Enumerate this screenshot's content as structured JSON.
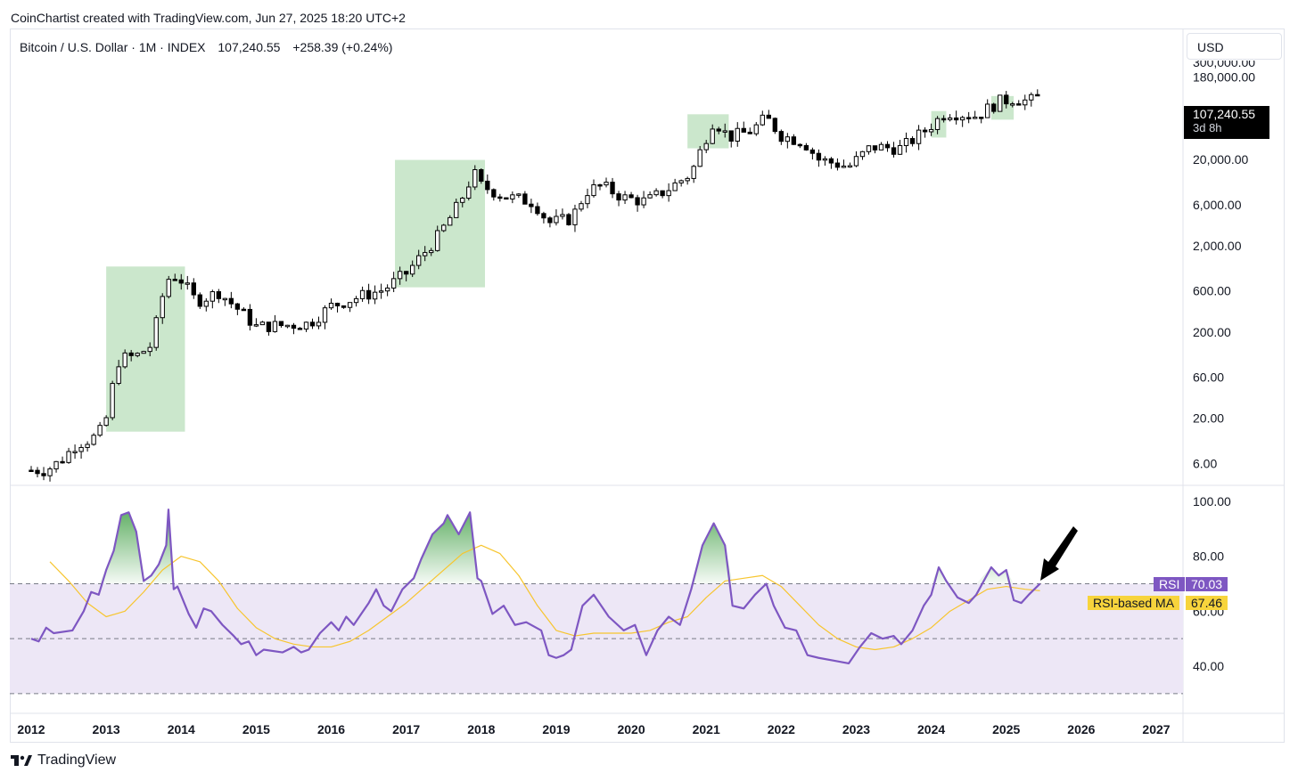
{
  "header": {
    "attribution": "CoinChartist created with TradingView.com, Jun 27, 2025 18:20 UTC+2",
    "symbol": "Bitcoin / U.S. Dollar · 1M · INDEX",
    "last_price": "107,240.55",
    "change": "+258.39 (+0.24%)",
    "currency": "USD"
  },
  "price_tag": {
    "price": "107,240.55",
    "countdown": "3d 8h"
  },
  "rsi_labels": {
    "rsi_name": "RSI",
    "rsi_value": "70.03",
    "ma_name": "RSI-based MA",
    "ma_value": "67.46"
  },
  "footer": {
    "brand": "TradingView",
    "logo_icon": "tradingview-logo-icon",
    "annotation_icon": "arrow-annotation-icon"
  },
  "colors": {
    "rsi_line": "#7e57c2",
    "rsi_ma": "#f7c52e",
    "rsi_band": "#ede7f6",
    "highlight": "#c8e6c9",
    "candle_up": "#ffffff",
    "candle_down": "#000000"
  },
  "chart_data": [
    {
      "type": "candlestick",
      "title": "",
      "scale": "log",
      "y_ticks": [
        "180,000.00",
        "20,000.00",
        "6,000.00",
        "2,000.00",
        "600.00",
        "200.00",
        "60.00",
        "20.00",
        "6.00"
      ],
      "y_tick_values": [
        180000,
        20000,
        6000,
        2000,
        600,
        200,
        60,
        20,
        6
      ],
      "partial_top_tick": "300,000.00",
      "x_ticks": [
        "2012",
        "2013",
        "2014",
        "2015",
        "2016",
        "2017",
        "2018",
        "2019",
        "2020",
        "2021",
        "2022",
        "2023",
        "2024",
        "2025",
        "2026",
        "2027"
      ],
      "xlim": [
        2012,
        2027.3
      ],
      "ylim_log": [
        3.5,
        340000
      ],
      "close_path": [
        [
          2012.0,
          5.0
        ],
        [
          2012.2,
          5.0
        ],
        [
          2012.4,
          6.5
        ],
        [
          2012.6,
          10.0
        ],
        [
          2012.8,
          11.5
        ],
        [
          2012.9,
          13.0
        ],
        [
          2013.0,
          20.0
        ],
        [
          2013.15,
          90.0
        ],
        [
          2013.25,
          100.0
        ],
        [
          2013.4,
          105.0
        ],
        [
          2013.6,
          140.0
        ],
        [
          2013.8,
          800.0
        ],
        [
          2013.9,
          900.0
        ],
        [
          2014.0,
          800.0
        ],
        [
          2014.2,
          450.0
        ],
        [
          2014.5,
          580.0
        ],
        [
          2014.8,
          340.0
        ],
        [
          2015.0,
          230.0
        ],
        [
          2015.4,
          240.0
        ],
        [
          2015.7,
          250.0
        ],
        [
          2016.0,
          400.0
        ],
        [
          2016.4,
          520.0
        ],
        [
          2016.7,
          620.0
        ],
        [
          2017.0,
          960.0
        ],
        [
          2017.4,
          2400.0
        ],
        [
          2017.7,
          6000.0
        ],
        [
          2017.9,
          14000.0
        ],
        [
          2018.0,
          10000.0
        ],
        [
          2018.3,
          7500.0
        ],
        [
          2018.7,
          6400.0
        ],
        [
          2018.9,
          3700.0
        ],
        [
          2019.2,
          4100.0
        ],
        [
          2019.4,
          8500.0
        ],
        [
          2019.6,
          10000.0
        ],
        [
          2019.9,
          7200.0
        ],
        [
          2020.2,
          6500.0
        ],
        [
          2020.5,
          9200.0
        ],
        [
          2020.8,
          13800.0
        ],
        [
          2020.95,
          29000.0
        ],
        [
          2021.1,
          58000.0
        ],
        [
          2021.3,
          36000.0
        ],
        [
          2021.6,
          43000.0
        ],
        [
          2021.8,
          61000.0
        ],
        [
          2022.0,
          38000.0
        ],
        [
          2022.3,
          32000.0
        ],
        [
          2022.5,
          20000.0
        ],
        [
          2022.9,
          16500.0
        ],
        [
          2023.2,
          28000.0
        ],
        [
          2023.6,
          27000.0
        ],
        [
          2023.9,
          42000.0
        ],
        [
          2024.2,
          71000.0
        ],
        [
          2024.6,
          64000.0
        ],
        [
          2024.9,
          93000.0
        ],
        [
          2025.1,
          102000.0
        ],
        [
          2025.3,
          94000.0
        ],
        [
          2025.45,
          107240.55
        ]
      ],
      "highlight_boxes": [
        {
          "x0": 2013.0,
          "x1": 2014.05,
          "y_low": 14,
          "y_high": 1150
        },
        {
          "x0": 2016.85,
          "x1": 2018.05,
          "y_low": 660,
          "y_high": 19800
        },
        {
          "x0": 2020.75,
          "x1": 2021.3,
          "y_low": 27000,
          "y_high": 67000
        },
        {
          "x0": 2024.0,
          "x1": 2024.2,
          "y_low": 36000,
          "y_high": 73000
        },
        {
          "x0": 2024.8,
          "x1": 2025.1,
          "y_low": 58000,
          "y_high": 109000
        }
      ]
    },
    {
      "type": "line",
      "title": "",
      "y_ticks": [
        "100.00",
        "80.00",
        "60.00",
        "40.00"
      ],
      "ylim": [
        20,
        106
      ],
      "band": [
        30,
        70
      ],
      "midline": 50,
      "series": [
        {
          "name": "RSI",
          "values_path": [
            [
              2012.0,
              50
            ],
            [
              2012.1,
              49
            ],
            [
              2012.2,
              54
            ],
            [
              2012.3,
              52
            ],
            [
              2012.55,
              53
            ],
            [
              2012.7,
              60
            ],
            [
              2012.8,
              67
            ],
            [
              2012.9,
              66
            ],
            [
              2013.0,
              75
            ],
            [
              2013.1,
              82
            ],
            [
              2013.2,
              95
            ],
            [
              2013.3,
              96
            ],
            [
              2013.4,
              89
            ],
            [
              2013.5,
              71
            ],
            [
              2013.6,
              73
            ],
            [
              2013.7,
              77
            ],
            [
              2013.8,
              84
            ],
            [
              2013.83,
              97
            ],
            [
              2013.9,
              68
            ],
            [
              2013.95,
              69
            ],
            [
              2014.1,
              59
            ],
            [
              2014.2,
              54
            ],
            [
              2014.3,
              61
            ],
            [
              2014.4,
              60
            ],
            [
              2014.55,
              55
            ],
            [
              2014.7,
              51
            ],
            [
              2014.8,
              48
            ],
            [
              2014.9,
              49
            ],
            [
              2015.0,
              44
            ],
            [
              2015.1,
              46
            ],
            [
              2015.35,
              45
            ],
            [
              2015.5,
              47
            ],
            [
              2015.6,
              45
            ],
            [
              2015.7,
              46
            ],
            [
              2015.85,
              52
            ],
            [
              2016.0,
              56
            ],
            [
              2016.1,
              53
            ],
            [
              2016.2,
              58
            ],
            [
              2016.3,
              55
            ],
            [
              2016.4,
              59
            ],
            [
              2016.5,
              63
            ],
            [
              2016.6,
              68
            ],
            [
              2016.7,
              62
            ],
            [
              2016.8,
              60
            ],
            [
              2016.95,
              68
            ],
            [
              2017.1,
              72
            ],
            [
              2017.2,
              79
            ],
            [
              2017.35,
              88
            ],
            [
              2017.5,
              92
            ],
            [
              2017.55,
              95
            ],
            [
              2017.7,
              88
            ],
            [
              2017.85,
              96
            ],
            [
              2017.95,
              72
            ],
            [
              2018.0,
              71
            ],
            [
              2018.15,
              59
            ],
            [
              2018.3,
              62
            ],
            [
              2018.45,
              55
            ],
            [
              2018.6,
              56
            ],
            [
              2018.8,
              53
            ],
            [
              2018.9,
              44
            ],
            [
              2019.0,
              43
            ],
            [
              2019.1,
              44
            ],
            [
              2019.2,
              46
            ],
            [
              2019.35,
              62
            ],
            [
              2019.5,
              66
            ],
            [
              2019.7,
              58
            ],
            [
              2019.9,
              53
            ],
            [
              2020.05,
              55
            ],
            [
              2020.2,
              44
            ],
            [
              2020.35,
              53
            ],
            [
              2020.5,
              58
            ],
            [
              2020.65,
              55
            ],
            [
              2020.8,
              68
            ],
            [
              2020.95,
              84
            ],
            [
              2021.1,
              92
            ],
            [
              2021.25,
              84
            ],
            [
              2021.35,
              62
            ],
            [
              2021.5,
              61
            ],
            [
              2021.65,
              66
            ],
            [
              2021.8,
              70
            ],
            [
              2021.9,
              62
            ],
            [
              2022.05,
              54
            ],
            [
              2022.2,
              53
            ],
            [
              2022.35,
              44
            ],
            [
              2022.5,
              43
            ],
            [
              2022.7,
              42
            ],
            [
              2022.9,
              41
            ],
            [
              2023.05,
              47
            ],
            [
              2023.2,
              52
            ],
            [
              2023.35,
              50
            ],
            [
              2023.5,
              51
            ],
            [
              2023.6,
              48
            ],
            [
              2023.75,
              53
            ],
            [
              2023.9,
              62
            ],
            [
              2024.0,
              66
            ],
            [
              2024.1,
              76
            ],
            [
              2024.2,
              71
            ],
            [
              2024.35,
              65
            ],
            [
              2024.5,
              63
            ],
            [
              2024.6,
              66
            ],
            [
              2024.8,
              76
            ],
            [
              2024.9,
              73
            ],
            [
              2025.0,
              75
            ],
            [
              2025.1,
              64
            ],
            [
              2025.2,
              63
            ],
            [
              2025.3,
              66
            ],
            [
              2025.45,
              70.03
            ]
          ]
        },
        {
          "name": "RSI-based MA",
          "values_path": [
            [
              2012.25,
              78
            ],
            [
              2012.5,
              71
            ],
            [
              2012.75,
              63
            ],
            [
              2013.0,
              58
            ],
            [
              2013.25,
              60
            ],
            [
              2013.5,
              67
            ],
            [
              2013.75,
              75
            ],
            [
              2014.0,
              80
            ],
            [
              2014.25,
              78
            ],
            [
              2014.5,
              71
            ],
            [
              2014.75,
              61
            ],
            [
              2015.0,
              54
            ],
            [
              2015.25,
              50
            ],
            [
              2015.5,
              48
            ],
            [
              2015.75,
              47
            ],
            [
              2016.0,
              47
            ],
            [
              2016.25,
              49
            ],
            [
              2016.5,
              53
            ],
            [
              2016.75,
              58
            ],
            [
              2017.0,
              63
            ],
            [
              2017.25,
              69
            ],
            [
              2017.5,
              75
            ],
            [
              2017.75,
              81
            ],
            [
              2018.0,
              84
            ],
            [
              2018.25,
              81
            ],
            [
              2018.5,
              73
            ],
            [
              2018.75,
              62
            ],
            [
              2019.0,
              53
            ],
            [
              2019.25,
              51
            ],
            [
              2019.5,
              52
            ],
            [
              2019.75,
              52
            ],
            [
              2020.0,
              52
            ],
            [
              2020.25,
              53
            ],
            [
              2020.5,
              56
            ],
            [
              2020.75,
              58
            ],
            [
              2021.0,
              65
            ],
            [
              2021.25,
              71
            ],
            [
              2021.5,
              72
            ],
            [
              2021.75,
              73
            ],
            [
              2022.0,
              69
            ],
            [
              2022.25,
              62
            ],
            [
              2022.5,
              55
            ],
            [
              2022.75,
              50
            ],
            [
              2023.0,
              47
            ],
            [
              2023.25,
              46
            ],
            [
              2023.5,
              47
            ],
            [
              2023.75,
              50
            ],
            [
              2024.0,
              54
            ],
            [
              2024.25,
              60
            ],
            [
              2024.5,
              64
            ],
            [
              2024.75,
              68
            ],
            [
              2025.0,
              69
            ],
            [
              2025.25,
              68
            ],
            [
              2025.45,
              67.46
            ]
          ]
        }
      ]
    }
  ]
}
